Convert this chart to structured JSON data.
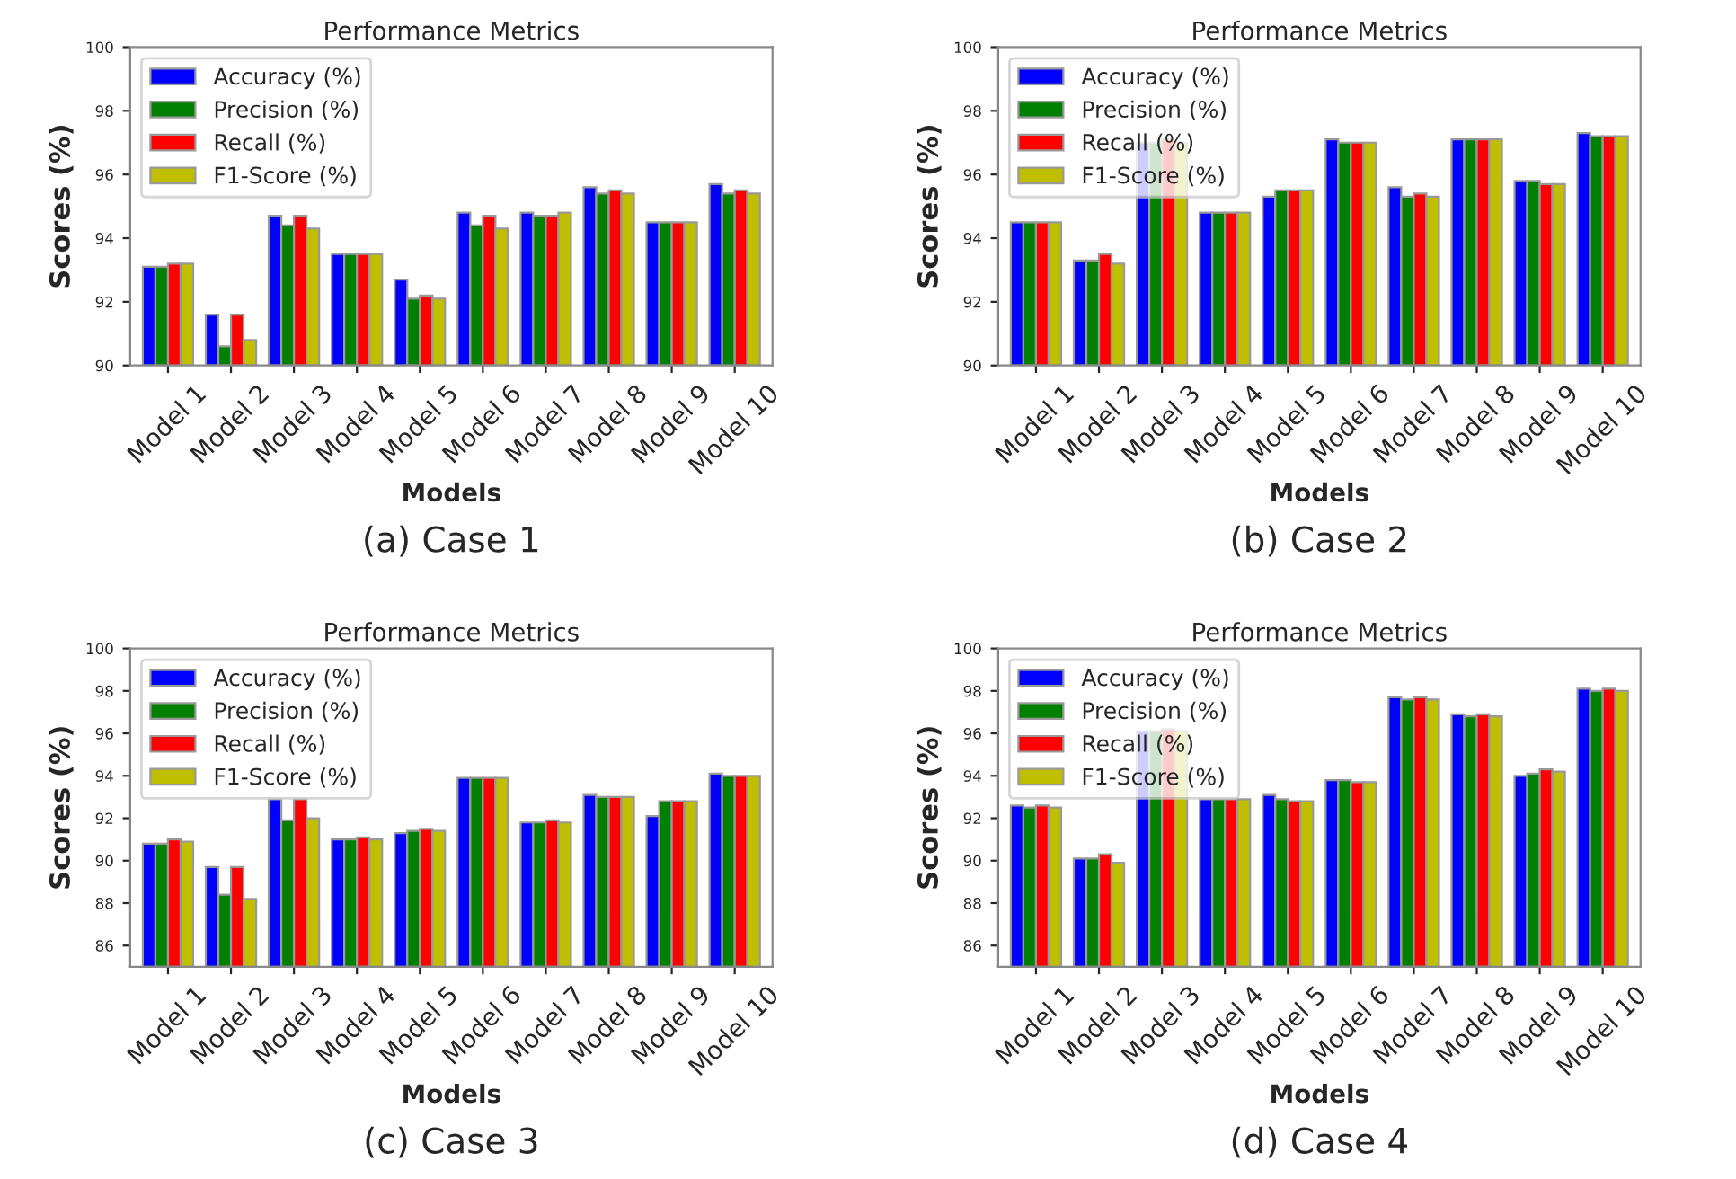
{
  "chart_data": [
    {
      "type": "bar",
      "title": "Performance Metrics",
      "xlabel": "Models",
      "ylabel": "Scores (%)",
      "categories": [
        "Model 1",
        "Model 2",
        "Model 3",
        "Model 4",
        "Model 5",
        "Model 6",
        "Model 7",
        "Model 8",
        "Model 9",
        "Model 10"
      ],
      "ylim": [
        90,
        100
      ],
      "yticks": [
        90,
        92,
        94,
        96,
        98,
        100
      ],
      "legend": "top left",
      "annotations": [
        "(a) Case 1"
      ],
      "series": [
        {
          "name": "Accuracy (%)",
          "color": "#0000ff",
          "values": [
            93.1,
            91.6,
            94.7,
            93.5,
            92.7,
            94.8,
            94.8,
            95.6,
            94.5,
            95.7
          ]
        },
        {
          "name": "Precision (%)",
          "color": "#008000",
          "values": [
            93.1,
            90.6,
            94.4,
            93.5,
            92.1,
            94.4,
            94.7,
            95.4,
            94.5,
            95.4
          ]
        },
        {
          "name": "Recall (%)",
          "color": "#ff0000",
          "values": [
            93.2,
            91.6,
            94.7,
            93.5,
            92.2,
            94.7,
            94.7,
            95.5,
            94.5,
            95.5
          ]
        },
        {
          "name": "F1-Score (%)",
          "color": "#bfbf00",
          "values": [
            93.2,
            90.8,
            94.3,
            93.5,
            92.1,
            94.3,
            94.8,
            95.4,
            94.5,
            95.4
          ]
        }
      ]
    },
    {
      "type": "bar",
      "title": "Performance Metrics",
      "xlabel": "Models",
      "ylabel": "Scores (%)",
      "categories": [
        "Model 1",
        "Model 2",
        "Model 3",
        "Model 4",
        "Model 5",
        "Model 6",
        "Model 7",
        "Model 8",
        "Model 9",
        "Model 10"
      ],
      "ylim": [
        90,
        100
      ],
      "yticks": [
        90,
        92,
        94,
        96,
        98,
        100
      ],
      "legend": "top left",
      "annotations": [
        "(b) Case 2"
      ],
      "series": [
        {
          "name": "Accuracy (%)",
          "color": "#0000ff",
          "values": [
            94.5,
            93.3,
            97.0,
            94.8,
            95.3,
            97.1,
            95.6,
            97.1,
            95.8,
            97.3
          ]
        },
        {
          "name": "Precision (%)",
          "color": "#008000",
          "values": [
            94.5,
            93.3,
            97.0,
            94.8,
            95.5,
            97.0,
            95.3,
            97.1,
            95.8,
            97.2
          ]
        },
        {
          "name": "Recall (%)",
          "color": "#ff0000",
          "values": [
            94.5,
            93.5,
            97.1,
            94.8,
            95.5,
            97.0,
            95.4,
            97.1,
            95.7,
            97.2
          ]
        },
        {
          "name": "F1-Score (%)",
          "color": "#bfbf00",
          "values": [
            94.5,
            93.2,
            97.0,
            94.8,
            95.5,
            97.0,
            95.3,
            97.1,
            95.7,
            97.2
          ]
        }
      ]
    },
    {
      "type": "bar",
      "title": "Performance Metrics",
      "xlabel": "Models",
      "ylabel": "Scores (%)",
      "categories": [
        "Model 1",
        "Model 2",
        "Model 3",
        "Model 4",
        "Model 5",
        "Model 6",
        "Model 7",
        "Model 8",
        "Model 9",
        "Model 10"
      ],
      "ylim": [
        85,
        100
      ],
      "yticks": [
        86,
        88,
        90,
        92,
        94,
        96,
        98,
        100
      ],
      "legend": "top left",
      "annotations": [
        "(c) Case 3"
      ],
      "series": [
        {
          "name": "Accuracy (%)",
          "color": "#0000ff",
          "values": [
            90.8,
            89.7,
            92.9,
            91.0,
            91.3,
            93.9,
            91.8,
            93.1,
            92.1,
            94.1
          ]
        },
        {
          "name": "Precision (%)",
          "color": "#008000",
          "values": [
            90.8,
            88.4,
            91.9,
            91.0,
            91.4,
            93.9,
            91.8,
            93.0,
            92.8,
            94.0
          ]
        },
        {
          "name": "Recall (%)",
          "color": "#ff0000",
          "values": [
            91.0,
            89.7,
            92.9,
            91.1,
            91.5,
            93.9,
            91.9,
            93.0,
            92.8,
            94.0
          ]
        },
        {
          "name": "F1-Score (%)",
          "color": "#bfbf00",
          "values": [
            90.9,
            88.2,
            92.0,
            91.0,
            91.4,
            93.9,
            91.8,
            93.0,
            92.8,
            94.0
          ]
        }
      ]
    },
    {
      "type": "bar",
      "title": "Performance Metrics",
      "xlabel": "Models",
      "ylabel": "Scores (%)",
      "categories": [
        "Model 1",
        "Model 2",
        "Model 3",
        "Model 4",
        "Model 5",
        "Model 6",
        "Model 7",
        "Model 8",
        "Model 9",
        "Model 10"
      ],
      "ylim": [
        85,
        100
      ],
      "yticks": [
        86,
        88,
        90,
        92,
        94,
        96,
        98,
        100
      ],
      "legend": "top left",
      "annotations": [
        "(d) Case 4"
      ],
      "series": [
        {
          "name": "Accuracy (%)",
          "color": "#0000ff",
          "values": [
            92.6,
            90.1,
            96.1,
            92.9,
            93.1,
            93.8,
            97.7,
            96.9,
            94.0,
            98.1
          ]
        },
        {
          "name": "Precision (%)",
          "color": "#008000",
          "values": [
            92.5,
            90.1,
            96.1,
            92.9,
            92.9,
            93.8,
            97.6,
            96.8,
            94.1,
            98.0
          ]
        },
        {
          "name": "Recall (%)",
          "color": "#ff0000",
          "values": [
            92.6,
            90.3,
            96.2,
            92.9,
            92.8,
            93.7,
            97.7,
            96.9,
            94.3,
            98.1
          ]
        },
        {
          "name": "F1-Score (%)",
          "color": "#bfbf00",
          "values": [
            92.5,
            89.9,
            96.1,
            92.9,
            92.8,
            93.7,
            97.6,
            96.8,
            94.2,
            98.0
          ]
        }
      ]
    }
  ]
}
